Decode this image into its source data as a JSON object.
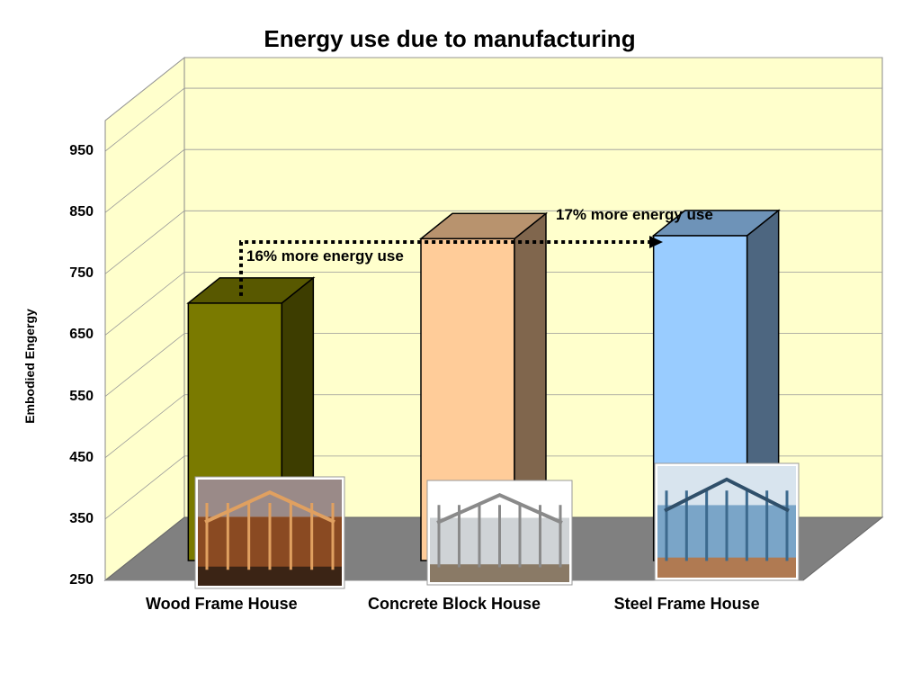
{
  "chart_data": {
    "type": "bar",
    "title": "Energy use due to manufacturing",
    "xlabel": "",
    "ylabel": "Embodied Engergy",
    "ylim": [
      250,
      1000
    ],
    "yticks": [
      250,
      350,
      450,
      550,
      650,
      750,
      850,
      950
    ],
    "categories": [
      "Wood Frame House",
      "Concrete Block House",
      "Steel Frame House"
    ],
    "values": [
      670,
      775,
      780
    ],
    "colors": [
      "#7a7a00",
      "#ffcc99",
      "#99ccff"
    ],
    "annotations": [
      {
        "text": "16% more energy use",
        "from": "Wood Frame House",
        "to": "Concrete Block House"
      },
      {
        "text": "17% more energy use",
        "from": "Wood Frame House",
        "to": "Steel Frame House"
      }
    ],
    "grid": true,
    "style": "3d",
    "wall_color": "#ffffcc",
    "floor_color": "#808080",
    "photos": [
      "wood-frame-house-photo",
      "concrete-block-house-photo",
      "steel-frame-house-photo"
    ]
  }
}
